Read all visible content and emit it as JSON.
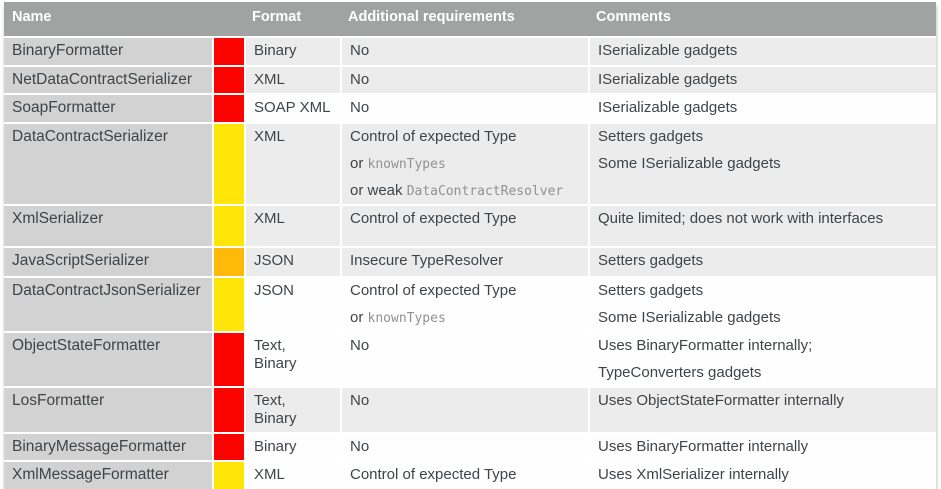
{
  "table": {
    "columns": {
      "name": "Name",
      "format": "Format",
      "requirements": "Additional requirements",
      "comments": "Comments"
    },
    "risk_colors": {
      "red": "#fb0400",
      "yellow": "#ffe606",
      "orange": "#ffb906"
    },
    "rows": [
      {
        "name": "BinaryFormatter",
        "risk": "red",
        "format": "Binary",
        "requirements": [
          [
            {
              "text": "No"
            }
          ]
        ],
        "comments": [
          [
            {
              "text": "ISerializable gadgets"
            }
          ]
        ]
      },
      {
        "name": "NetDataContractSerializer",
        "risk": "red",
        "format": "XML",
        "requirements": [
          [
            {
              "text": "No"
            }
          ]
        ],
        "comments": [
          [
            {
              "text": "ISerializable gadgets"
            }
          ]
        ]
      },
      {
        "name": "SoapFormatter",
        "risk": "red",
        "format": "SOAP XML",
        "requirements": [
          [
            {
              "text": "No"
            }
          ]
        ],
        "comments": [
          [
            {
              "text": "ISerializable gadgets"
            }
          ]
        ]
      },
      {
        "name": "DataContractSerializer",
        "risk": "yellow",
        "format": "XML",
        "requirements": [
          [
            {
              "text": "Control of expected Type"
            }
          ],
          [
            {
              "text": "or "
            },
            {
              "text": "knownTypes",
              "mono": true
            }
          ],
          [
            {
              "text": "or weak "
            },
            {
              "text": "DataContractResolver",
              "mono": true
            }
          ]
        ],
        "comments": [
          [
            {
              "text": "Setters gadgets"
            }
          ],
          [
            {
              "text": "Some ISerializable gadgets"
            }
          ]
        ]
      },
      {
        "name": "XmlSerializer",
        "risk": "yellow",
        "format": "XML",
        "requirements": [
          [
            {
              "text": "Control of expected Type"
            }
          ]
        ],
        "comments": [
          [
            {
              "text": "Quite limited; does not work with interfaces"
            }
          ]
        ]
      },
      {
        "name": "JavaScriptSerializer",
        "risk": "orange",
        "format": "JSON",
        "requirements": [
          [
            {
              "text": "Insecure TypeResolver"
            }
          ]
        ],
        "comments": [
          [
            {
              "text": "Setters gadgets"
            }
          ]
        ]
      },
      {
        "name": "DataContractJsonSerializer",
        "risk": "yellow",
        "format": "JSON",
        "requirements": [
          [
            {
              "text": "Control of expected Type"
            }
          ],
          [
            {
              "text": "or "
            },
            {
              "text": "knownTypes",
              "mono": true
            }
          ]
        ],
        "comments": [
          [
            {
              "text": "Setters gadgets"
            }
          ],
          [
            {
              "text": "Some ISerializable gadgets"
            }
          ]
        ]
      },
      {
        "name": "ObjectStateFormatter",
        "risk": "red",
        "format": "Text, Binary",
        "requirements": [
          [
            {
              "text": "No"
            }
          ]
        ],
        "comments": [
          [
            {
              "text": "Uses BinaryFormatter internally;"
            }
          ],
          [
            {
              "text": "TypeConverters gadgets"
            }
          ]
        ]
      },
      {
        "name": "LosFormatter",
        "risk": "red",
        "format": "Text, Binary",
        "requirements": [
          [
            {
              "text": "No"
            }
          ]
        ],
        "comments": [
          [
            {
              "text": "Uses ObjectStateFormatter internally"
            }
          ]
        ]
      },
      {
        "name": "BinaryMessageFormatter",
        "risk": "red",
        "format": "Binary",
        "requirements": [
          [
            {
              "text": "No"
            }
          ]
        ],
        "comments": [
          [
            {
              "text": "Uses BinaryFormatter internally"
            }
          ]
        ]
      },
      {
        "name": "XmlMessageFormatter",
        "risk": "yellow",
        "format": "XML",
        "requirements": [
          [
            {
              "text": "Control of expected Type"
            }
          ]
        ],
        "comments": [
          [
            {
              "text": "Uses XmlSerializer internally"
            }
          ]
        ]
      }
    ]
  }
}
